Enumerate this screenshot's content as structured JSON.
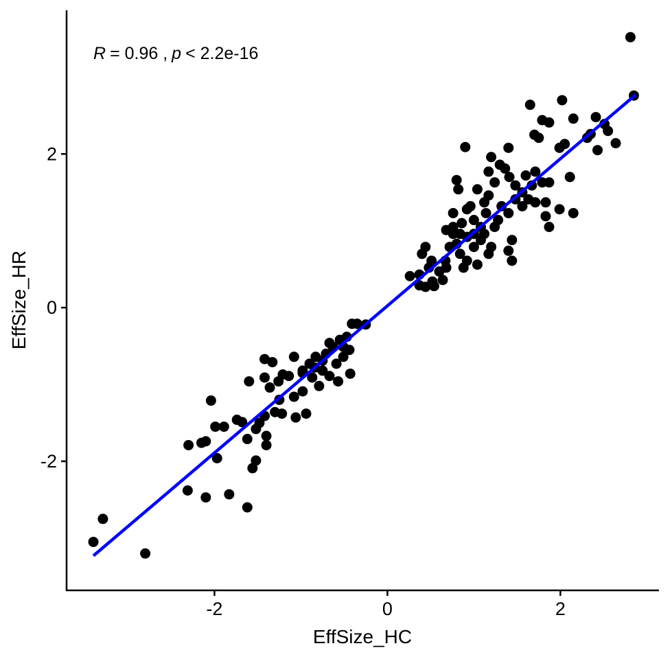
{
  "chart_data": {
    "type": "scatter",
    "x_label": "EffSize_HC",
    "y_label": "EffSize_HR",
    "annotation_parts": [
      {
        "text": "R",
        "italic": true
      },
      {
        "text": "= 0.96 ,",
        "italic": false
      },
      {
        "text": "p",
        "italic": true
      },
      {
        "text": "< 2.2e-16",
        "italic": false
      }
    ],
    "xlim": [
      -3.71,
      3.14
    ],
    "ylim": [
      -3.68,
      3.87
    ],
    "xticks": [
      -2,
      0,
      2
    ],
    "yticks": [
      -2,
      0,
      2
    ],
    "grid": false,
    "point_color": "#000000",
    "fit": {
      "color": "#0000ff",
      "x": [
        -3.4,
        2.87
      ],
      "y": [
        -3.23,
        2.77
      ]
    },
    "x": [
      2.81,
      2.85,
      -3.4,
      -3.29,
      -2.8,
      -2.31,
      -2.1,
      -1.83,
      -1.62,
      -1.56,
      -1.52,
      -2.3,
      -2.15,
      -2.1,
      -1.97,
      -2.04,
      -1.99,
      -1.89,
      -1.74,
      -1.68,
      -1.62,
      -1.6,
      -1.4,
      -1.4,
      -1.52,
      -1.48,
      -1.42,
      -1.42,
      -1.42,
      -1.33,
      -1.36,
      -1.3,
      -1.25,
      -1.26,
      -1.22,
      -1.14,
      -1.08,
      -1.08,
      -1.06,
      -0.98,
      -0.94,
      -0.98,
      -0.9,
      -0.87,
      -0.83,
      -0.79,
      -0.75,
      -0.71,
      -0.67,
      -0.63,
      -0.59,
      -0.57,
      -0.55,
      -0.51,
      -0.47,
      -0.44,
      -0.43,
      -0.41,
      -0.35,
      -0.25,
      -0.98,
      -1.21,
      -0.75,
      -0.84,
      -0.51,
      -0.67,
      0.26,
      0.37,
      0.4,
      0.44,
      0.48,
      0.52,
      0.6,
      0.67,
      0.72,
      0.76,
      0.8,
      0.84,
      0.88,
      0.92,
      1.0,
      1.08,
      0.37,
      0.44,
      0.54,
      0.64,
      0.68,
      0.76,
      0.92,
      0.96,
      0.76,
      0.86,
      1.0,
      1.08,
      1.12,
      1.2,
      1.24,
      1.28,
      1.32,
      1.4,
      1.48,
      1.56,
      1.63,
      1.71,
      1.83,
      1.87,
      1.83,
      1.99,
      2.15,
      1.44,
      1.4,
      1.44,
      1.17,
      1.14,
      1.0,
      1.12,
      1.17,
      1.24,
      1.3,
      1.36,
      1.41,
      1.48,
      1.56,
      1.6,
      1.67,
      1.71,
      1.79,
      1.87,
      2.11,
      1.99,
      2.05,
      1.75,
      1.7,
      1.79,
      1.87,
      1.65,
      2.02,
      2.15,
      2.31,
      2.41,
      2.51,
      2.55,
      2.43,
      2.64,
      2.35,
      1.4,
      1.2,
      1.17,
      0.9,
      0.8,
      0.82,
      1.04,
      0.84,
      0.92,
      1.04,
      0.68,
      0.51
    ],
    "y": [
      3.52,
      2.76,
      -3.05,
      -2.75,
      -3.2,
      -2.38,
      -2.47,
      -2.43,
      -2.6,
      -2.09,
      -1.99,
      -1.79,
      -1.76,
      -1.74,
      -1.96,
      -1.21,
      -1.55,
      -1.55,
      -1.46,
      -1.49,
      -1.71,
      -0.96,
      -1.79,
      -1.67,
      -1.58,
      -1.5,
      -1.41,
      -0.91,
      -0.67,
      -0.71,
      -1.04,
      -1.36,
      -1.2,
      -0.96,
      -1.38,
      -0.89,
      -0.64,
      -1.16,
      -1.43,
      -1.09,
      -1.38,
      -0.82,
      -0.73,
      -0.91,
      -0.64,
      -1.02,
      -0.82,
      -0.6,
      -0.89,
      -0.51,
      -0.73,
      -0.96,
      -0.42,
      -0.64,
      -0.38,
      -0.55,
      -0.86,
      -0.21,
      -0.21,
      -0.22,
      -0.85,
      -0.87,
      -0.69,
      -0.78,
      -0.51,
      -0.46,
      0.41,
      0.43,
      0.7,
      0.79,
      0.52,
      0.34,
      0.47,
      0.61,
      0.79,
      0.96,
      0.83,
      0.7,
      0.52,
      0.61,
      0.79,
      0.88,
      0.29,
      0.27,
      0.28,
      0.36,
      1.01,
      1.05,
      1.28,
      1.32,
      1.23,
      1.1,
      1.14,
      1.05,
      0.96,
      0.79,
      1.05,
      1.14,
      1.32,
      1.23,
      1.41,
      1.32,
      1.41,
      1.37,
      1.37,
      1.05,
      1.19,
      1.28,
      1.23,
      0.88,
      0.74,
      0.61,
      0.7,
      1.23,
      0.96,
      1.37,
      1.46,
      1.63,
      1.86,
      1.81,
      1.7,
      1.59,
      1.5,
      1.72,
      1.59,
      1.77,
      1.63,
      1.63,
      1.7,
      2.08,
      2.13,
      2.21,
      2.25,
      2.44,
      2.41,
      2.64,
      2.7,
      2.46,
      2.21,
      2.48,
      2.39,
      2.3,
      2.05,
      2.14,
      2.26,
      2.08,
      1.96,
      1.77,
      2.09,
      1.66,
      1.54,
      1.54,
      0.96,
      0.92,
      0.56,
      0.52,
      0.61
    ]
  }
}
